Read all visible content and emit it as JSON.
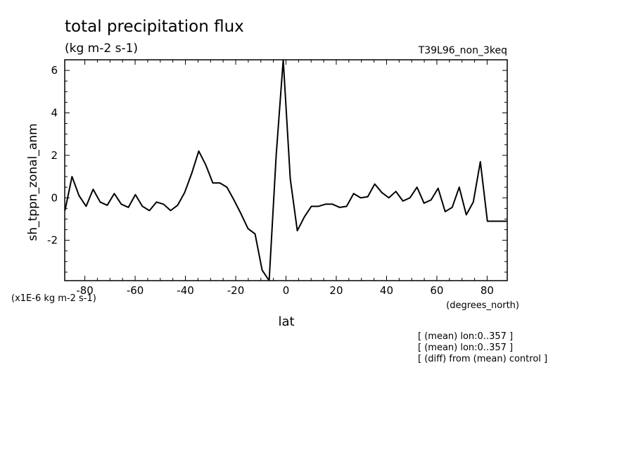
{
  "chart_data": {
    "type": "line",
    "title": "total precipitation flux",
    "subtitle": "(kg m-2 s-1)",
    "run_label": "T39L96_non_3keq",
    "ylabel": "sh_tppn_zonal_anm",
    "xlabel": "lat",
    "x_units": "(degrees_north)",
    "y_scale_note": "(x1E-6 kg m-2 s-1)",
    "notes": [
      "[ (mean) lon:0..357 ]",
      "[ (mean) lon:0..357 ]",
      "[ (diff) from (mean) control ]"
    ],
    "xlim": [
      -88,
      88
    ],
    "ylim": [
      -3.9,
      6.5
    ],
    "xticks": [
      -80,
      -60,
      -40,
      -20,
      0,
      20,
      40,
      60,
      80
    ],
    "xtick_labels": [
      "-80",
      "-60",
      "-40",
      "-20",
      "0",
      "20",
      "40",
      "60",
      "80"
    ],
    "yticks": [
      -2,
      0,
      2,
      4,
      6
    ],
    "ytick_labels": [
      "-2",
      "0",
      "2",
      "4",
      "6"
    ],
    "grid": false,
    "series": [
      {
        "x": [
          -87.9,
          -85.1,
          -82.3,
          -79.5,
          -76.7,
          -73.9,
          -71.1,
          -68.3,
          -65.5,
          -62.7,
          -59.9,
          -57.1,
          -54.3,
          -51.5,
          -48.7,
          -45.9,
          -43.1,
          -40.3,
          -37.5,
          -34.7,
          -31.9,
          -29.1,
          -26.3,
          -23.5,
          -20.7,
          -17.9,
          -15.1,
          -12.3,
          -9.5,
          -6.7,
          -3.9,
          -1.1,
          1.7,
          4.5,
          7.3,
          10.1,
          12.9,
          15.7,
          18.5,
          21.3,
          24.1,
          26.9,
          29.7,
          32.5,
          35.3,
          38.1,
          40.9,
          43.7,
          46.5,
          49.3,
          52.1,
          54.9,
          57.7,
          60.5,
          63.3,
          66.1,
          68.9,
          71.7,
          74.5,
          77.3,
          80.1,
          82.9,
          85.7,
          88.0
        ],
        "y": [
          -0.6,
          1.0,
          0.1,
          -0.4,
          0.4,
          -0.2,
          -0.35,
          0.2,
          -0.3,
          -0.45,
          0.15,
          -0.4,
          -0.6,
          -0.2,
          -0.3,
          -0.6,
          -0.35,
          0.25,
          1.15,
          2.2,
          1.55,
          0.7,
          0.7,
          0.5,
          -0.1,
          -0.75,
          -1.45,
          -1.7,
          -3.4,
          -3.9,
          2.0,
          6.5,
          0.9,
          -1.55,
          -0.9,
          -0.4,
          -0.4,
          -0.3,
          -0.3,
          -0.45,
          -0.4,
          0.2,
          0.0,
          0.05,
          0.65,
          0.25,
          0.0,
          0.3,
          -0.15,
          0.0,
          0.5,
          -0.25,
          -0.1,
          0.45,
          -0.65,
          -0.45,
          0.5,
          -0.8,
          -0.2,
          1.7,
          -1.1,
          -1.1,
          -1.1,
          -1.1
        ]
      }
    ]
  },
  "style": {
    "line_color": "#000000",
    "axis_color": "#000000",
    "background": "#ffffff"
  }
}
